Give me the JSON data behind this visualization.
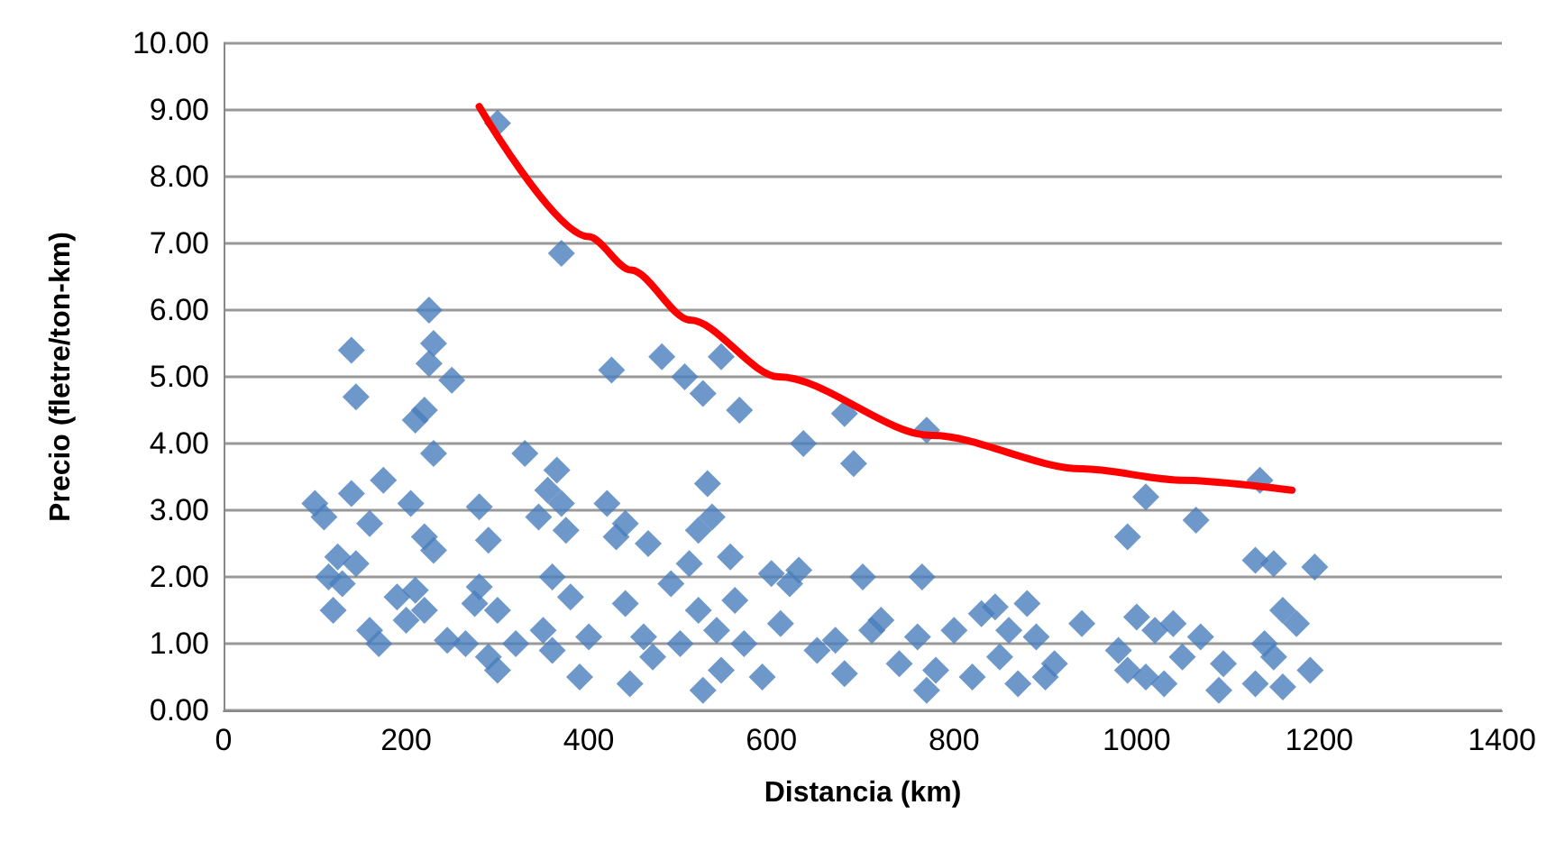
{
  "chart_data": {
    "type": "scatter",
    "xlabel": "Distancia (km)",
    "ylabel": "Precio (fletre/ton-km)",
    "xlim": [
      0,
      1400
    ],
    "xticks": [
      0,
      200,
      400,
      600,
      800,
      1000,
      1200,
      1400
    ],
    "ylim": [
      0,
      10
    ],
    "yticks": [
      {
        "value": 0,
        "label": "0.00"
      },
      {
        "value": 1,
        "label": "1.00"
      },
      {
        "value": 2,
        "label": "2.00"
      },
      {
        "value": 3,
        "label": "3.00"
      },
      {
        "value": 4,
        "label": "4.00"
      },
      {
        "value": 5,
        "label": "5.00"
      },
      {
        "value": 6,
        "label": "6.00"
      },
      {
        "value": 7,
        "label": "7.00"
      },
      {
        "value": 8,
        "label": "8.00"
      },
      {
        "value": 9,
        "label": "9.00"
      },
      {
        "value": 10,
        "label": "10.00"
      }
    ],
    "grid": "y",
    "marker": "diamond",
    "series": [
      {
        "color": "#4a7ebb",
        "x": [
          300,
          370,
          225,
          230,
          225,
          250,
          140,
          145,
          210,
          220,
          230,
          425,
          480,
          505,
          525,
          545,
          565,
          635,
          680,
          690,
          770,
          1010,
          990,
          1065,
          1135,
          1130,
          1150,
          1195,
          1160,
          100,
          110,
          140,
          175,
          205,
          220,
          230,
          160,
          115,
          125,
          145,
          120,
          130,
          160,
          170,
          190,
          210,
          220,
          200,
          245,
          265,
          275,
          280,
          290,
          280,
          300,
          290,
          300,
          320,
          330,
          345,
          355,
          360,
          365,
          370,
          375,
          380,
          350,
          360,
          390,
          400,
          420,
          430,
          440,
          440,
          445,
          460,
          465,
          470,
          490,
          500,
          510,
          520,
          520,
          525,
          530,
          535,
          540,
          545,
          555,
          560,
          570,
          590,
          600,
          610,
          620,
          630,
          650,
          670,
          680,
          700,
          710,
          720,
          740,
          760,
          765,
          770,
          780,
          800,
          820,
          830,
          845,
          850,
          860,
          870,
          880,
          890,
          900,
          910,
          940,
          980,
          990,
          1000,
          1010,
          1020,
          1030,
          1040,
          1050,
          1070,
          1090,
          1095,
          1130,
          1140,
          1150,
          1160,
          1175,
          1190
        ],
        "values": [
          8.8,
          6.85,
          6.0,
          5.5,
          5.2,
          4.95,
          5.4,
          4.7,
          4.35,
          4.5,
          3.85,
          5.1,
          5.3,
          5.0,
          4.75,
          5.3,
          4.5,
          4.0,
          4.45,
          3.7,
          4.2,
          3.2,
          2.6,
          2.85,
          3.45,
          2.25,
          2.2,
          2.15,
          1.5,
          3.1,
          2.9,
          3.25,
          3.45,
          3.1,
          2.6,
          2.4,
          2.8,
          2.0,
          2.3,
          2.2,
          1.5,
          1.9,
          1.2,
          1.0,
          1.7,
          1.8,
          1.5,
          1.35,
          1.05,
          1.0,
          1.6,
          3.05,
          2.55,
          1.85,
          1.5,
          0.8,
          0.6,
          1.0,
          3.85,
          2.9,
          3.3,
          2.0,
          3.6,
          3.1,
          2.7,
          1.7,
          1.2,
          0.9,
          0.5,
          1.1,
          3.1,
          2.6,
          2.8,
          1.6,
          0.4,
          1.1,
          2.5,
          0.8,
          1.9,
          1.0,
          2.2,
          2.7,
          1.5,
          0.3,
          3.4,
          2.9,
          1.2,
          0.6,
          2.3,
          1.65,
          1.0,
          0.5,
          2.05,
          1.3,
          1.9,
          2.1,
          0.9,
          1.05,
          0.55,
          2.0,
          1.2,
          1.35,
          0.7,
          1.1,
          2.0,
          0.3,
          0.6,
          1.2,
          0.5,
          1.45,
          1.55,
          0.8,
          1.2,
          0.4,
          1.6,
          1.1,
          0.5,
          0.7,
          1.3,
          0.9,
          0.6,
          1.4,
          0.5,
          1.2,
          0.4,
          1.3,
          0.8,
          1.1,
          0.3,
          0.7,
          0.4,
          1.0,
          0.8,
          0.35,
          1.3,
          0.6
        ]
      },
      {
        "type": "line",
        "color": "#ff0000",
        "marker": "none",
        "x": [
          280,
          400,
          446,
          511,
          608,
          776,
          940,
          1050,
          1170
        ],
        "values": [
          9.05,
          7.1,
          6.6,
          5.85,
          5.0,
          4.12,
          3.62,
          3.45,
          3.3
        ]
      }
    ]
  }
}
